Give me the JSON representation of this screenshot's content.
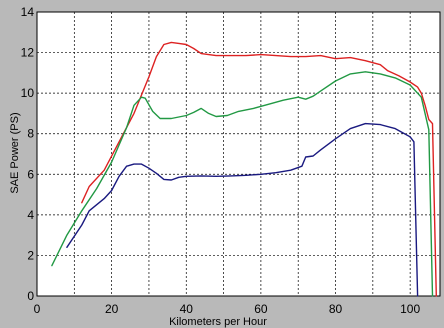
{
  "chart_data": {
    "type": "line",
    "title": "",
    "xlabel": "Kilometers per Hour",
    "ylabel": "SAE Power (PS)",
    "xlim": [
      0,
      108
    ],
    "ylim": [
      0,
      14
    ],
    "x_ticks": [
      0,
      20,
      40,
      60,
      80,
      100
    ],
    "y_ticks": [
      0,
      2,
      4,
      6,
      8,
      10,
      12,
      14
    ],
    "x_grid": [
      10,
      20,
      30,
      40,
      50,
      60,
      70,
      80,
      90,
      100
    ],
    "y_grid": [
      2,
      4,
      6,
      8,
      10,
      12
    ],
    "grid": true,
    "legend": "none",
    "series": [
      {
        "color": "#dd2222",
        "points": [
          [
            12,
            4.6
          ],
          [
            14,
            5.4
          ],
          [
            18,
            6.2
          ],
          [
            22,
            7.6
          ],
          [
            26,
            9.0
          ],
          [
            30,
            10.8
          ],
          [
            32,
            11.8
          ],
          [
            34,
            12.4
          ],
          [
            36,
            12.5
          ],
          [
            38,
            12.45
          ],
          [
            40,
            12.4
          ],
          [
            42,
            12.2
          ],
          [
            44,
            11.95
          ],
          [
            48,
            11.85
          ],
          [
            52,
            11.85
          ],
          [
            56,
            11.85
          ],
          [
            60,
            11.9
          ],
          [
            64,
            11.85
          ],
          [
            68,
            11.8
          ],
          [
            72,
            11.8
          ],
          [
            76,
            11.85
          ],
          [
            80,
            11.7
          ],
          [
            84,
            11.75
          ],
          [
            88,
            11.6
          ],
          [
            92,
            11.4
          ],
          [
            94,
            11.1
          ],
          [
            97,
            10.85
          ],
          [
            100,
            10.55
          ],
          [
            102,
            10.3
          ],
          [
            103,
            10.0
          ],
          [
            104,
            9.4
          ],
          [
            105,
            8.7
          ],
          [
            106,
            8.5
          ],
          [
            107,
            0
          ]
        ]
      },
      {
        "color": "#229944",
        "points": [
          [
            4,
            1.5
          ],
          [
            8,
            3.0
          ],
          [
            12,
            4.2
          ],
          [
            16,
            5.3
          ],
          [
            20,
            6.6
          ],
          [
            24,
            8.3
          ],
          [
            26,
            9.4
          ],
          [
            28,
            9.8
          ],
          [
            29,
            9.75
          ],
          [
            31,
            9.1
          ],
          [
            33,
            8.75
          ],
          [
            36,
            8.75
          ],
          [
            40,
            8.9
          ],
          [
            42,
            9.05
          ],
          [
            44,
            9.25
          ],
          [
            46,
            9.0
          ],
          [
            48,
            8.85
          ],
          [
            51,
            8.9
          ],
          [
            54,
            9.1
          ],
          [
            58,
            9.25
          ],
          [
            62,
            9.45
          ],
          [
            66,
            9.65
          ],
          [
            70,
            9.8
          ],
          [
            72,
            9.7
          ],
          [
            74,
            9.85
          ],
          [
            76,
            10.1
          ],
          [
            80,
            10.6
          ],
          [
            84,
            10.95
          ],
          [
            88,
            11.05
          ],
          [
            92,
            10.95
          ],
          [
            96,
            10.75
          ],
          [
            100,
            10.4
          ],
          [
            103,
            9.8
          ],
          [
            105,
            8.2
          ],
          [
            106,
            0
          ]
        ]
      },
      {
        "color": "#1a1a80",
        "points": [
          [
            8,
            2.4
          ],
          [
            12,
            3.5
          ],
          [
            14,
            4.2
          ],
          [
            18,
            4.8
          ],
          [
            20,
            5.2
          ],
          [
            22,
            5.9
          ],
          [
            24,
            6.4
          ],
          [
            26,
            6.5
          ],
          [
            28,
            6.5
          ],
          [
            30,
            6.3
          ],
          [
            32,
            6.05
          ],
          [
            34,
            5.75
          ],
          [
            36,
            5.72
          ],
          [
            38,
            5.85
          ],
          [
            40,
            5.9
          ],
          [
            44,
            5.92
          ],
          [
            48,
            5.9
          ],
          [
            52,
            5.92
          ],
          [
            56,
            5.95
          ],
          [
            60,
            6.0
          ],
          [
            64,
            6.08
          ],
          [
            68,
            6.2
          ],
          [
            71,
            6.4
          ],
          [
            72,
            6.85
          ],
          [
            74,
            6.9
          ],
          [
            76,
            7.2
          ],
          [
            80,
            7.75
          ],
          [
            84,
            8.25
          ],
          [
            88,
            8.5
          ],
          [
            92,
            8.45
          ],
          [
            96,
            8.25
          ],
          [
            98,
            8.05
          ],
          [
            100,
            7.85
          ],
          [
            101,
            7.6
          ],
          [
            102,
            0
          ]
        ]
      }
    ]
  }
}
